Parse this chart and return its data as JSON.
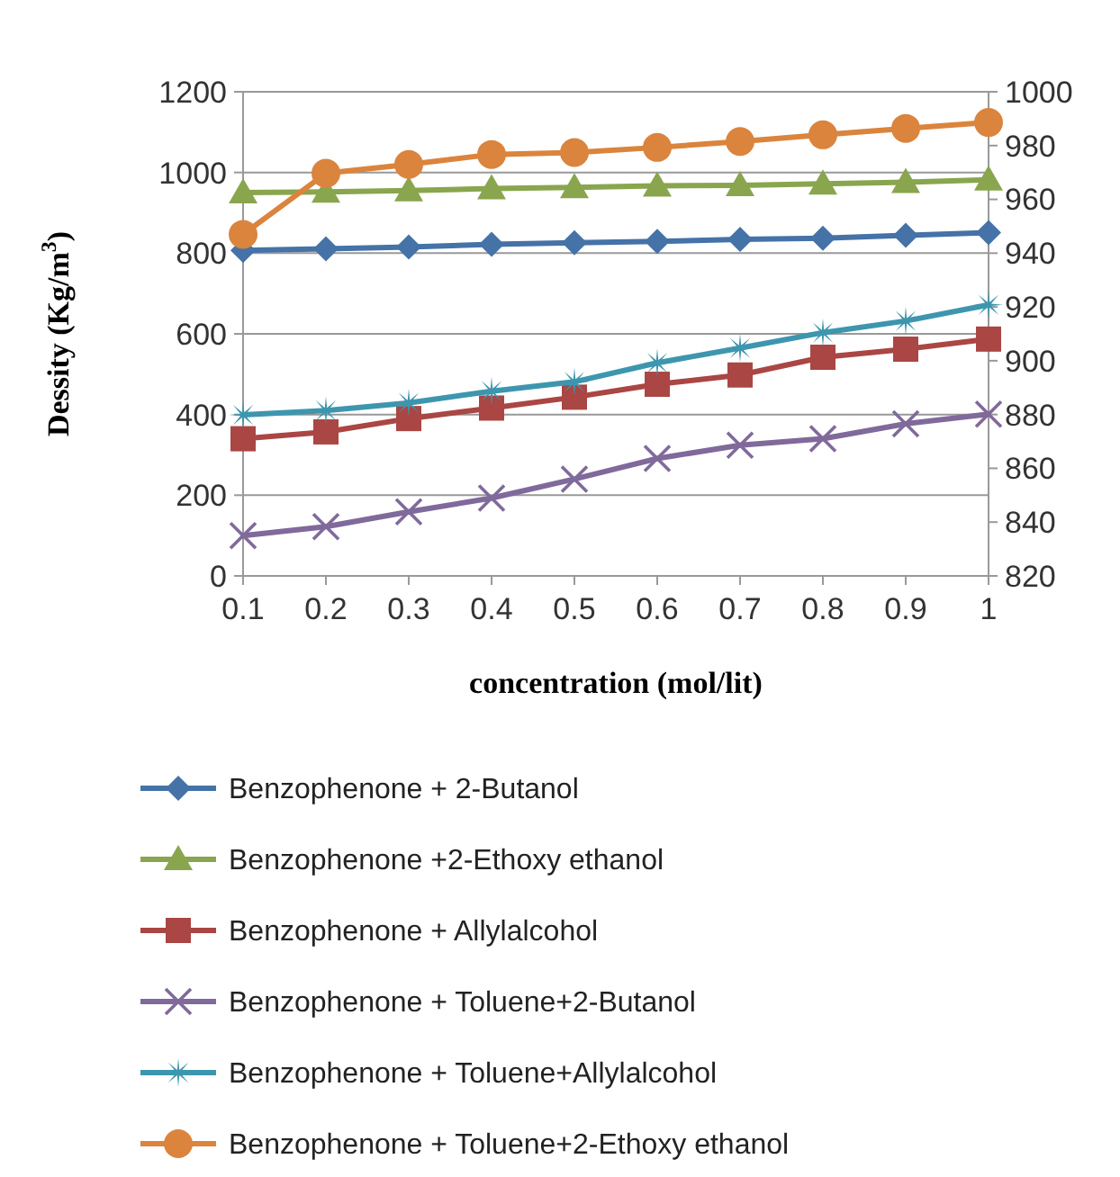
{
  "chart_data": {
    "type": "line",
    "xlabel": "concentration (mol/lit)",
    "ylabel": "Dessity (Kg/m$^{3}$)",
    "categories": [
      "0.1",
      "0.2",
      "0.3",
      "0.4",
      "0.5",
      "0.6",
      "0.7",
      "0.8",
      "0.9",
      "1"
    ],
    "ylim": [
      0,
      1200
    ],
    "yticks": [
      0,
      200,
      400,
      600,
      800,
      1000,
      1200
    ],
    "y2lim": [
      820,
      1000
    ],
    "y2ticks": [
      820,
      840,
      860,
      880,
      900,
      920,
      940,
      960,
      980,
      1000
    ],
    "grid": "y",
    "legend": "bottom",
    "series": [
      {
        "name": "Benzophenone + 2-Butanol",
        "color": "#4572a7",
        "marker": "diamond",
        "values": [
          807,
          811,
          815,
          822,
          826,
          829,
          834,
          837,
          844,
          851
        ]
      },
      {
        "name": "Benzophenone +2-Ethoxy ethanol",
        "color": "#89a54e",
        "marker": "triangle",
        "values": [
          950,
          952,
          955,
          960,
          963,
          967,
          968,
          972,
          976,
          982
        ]
      },
      {
        "name": "Benzophenone + Allylalcohol",
        "color": "#aa4643",
        "marker": "square",
        "values": [
          340,
          357,
          390,
          416,
          443,
          475,
          498,
          542,
          562,
          587
        ]
      },
      {
        "name": "Benzophenone + Toluene+2-Butanol",
        "color": "#80699b",
        "marker": "cross",
        "values": [
          100,
          122,
          159,
          193,
          240,
          291,
          324,
          340,
          377,
          401
        ]
      },
      {
        "name": "Benzophenone + Toluene+Allylalcohol",
        "color": "#3d96ae",
        "marker": "star",
        "values": [
          399,
          410,
          429,
          458,
          481,
          528,
          565,
          603,
          632,
          672
        ]
      },
      {
        "name": "Benzophenone + Toluene+2-Ethoxy ethanol",
        "color": "#db843d",
        "marker": "circle",
        "axis": "y2",
        "values": [
          947,
          969.7,
          973,
          976.7,
          977.4,
          979.3,
          981.5,
          984,
          986.4,
          988.6
        ]
      }
    ]
  }
}
